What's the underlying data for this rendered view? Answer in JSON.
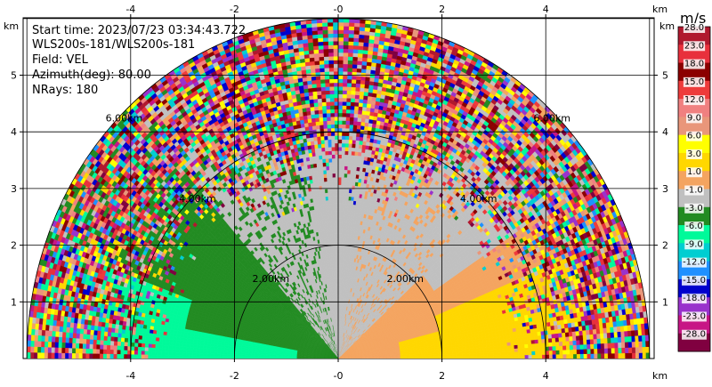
{
  "chart_data": {
    "type": "heatmap",
    "subtype": "radar-rhi-sector",
    "info_lines": [
      "Start time: 2023/07/23 03:34:43.722",
      "WLS200s-181/WLS200s-181",
      "Field: VEL",
      "Azimuth(deg): 80.00",
      "NRays: 180"
    ],
    "x_unit": "km",
    "y_unit": "km",
    "xlim": [
      -6,
      6
    ],
    "ylim": [
      0,
      6
    ],
    "x_ticks": [
      -4,
      -2,
      0,
      2,
      4
    ],
    "y_ticks": [
      1,
      2,
      3,
      4,
      5
    ],
    "x_tick_labels": [
      "-4",
      "-2",
      "-0",
      "2",
      "4"
    ],
    "y_tick_labels": [
      "1",
      "2",
      "3",
      "4",
      "5"
    ],
    "grid": true,
    "range_rings_km": [
      2,
      4,
      6
    ],
    "range_ring_labels": [
      "2.00km",
      "4.00km",
      "6.00km"
    ],
    "max_range_km": 6,
    "colorbar": {
      "unit": "m/s",
      "ticks": [
        "28.0",
        "23.0",
        "18.0",
        "15.0",
        "12.0",
        "9.0",
        "6.0",
        "3.0",
        "1.0",
        "-1.0",
        "-3.0",
        "-6.0",
        "-9.0",
        "-12.0",
        "-15.0",
        "-18.0",
        "-23.0",
        "-28.0"
      ],
      "colors": [
        "#b0182e",
        "#e8303c",
        "#8b0000",
        "#ee3b3b",
        "#f08080",
        "#e9967a",
        "#ffff00",
        "#ffd700",
        "#f4a460",
        "#c0c0c0",
        "#228b22",
        "#00fa9a",
        "#00ced1",
        "#1e90ff",
        "#0000cd",
        "#9932cc",
        "#c71585",
        "#800040"
      ]
    },
    "velocity_structure": [
      {
        "label": "-1.0 to 1.0",
        "color": "#c0c0c0",
        "region": "near-zero band near 0 km and along slanted line"
      },
      {
        "label": "1.0 to 3.0",
        "color": "#f4a460",
        "region": "right side, low elevation"
      },
      {
        "label": "3.0 to 6.0",
        "color": "#ffd700",
        "region": "right side, lowest elevation near 2-4 km"
      },
      {
        "label": "-3.0 to -1.0",
        "color": "#228b22",
        "region": "left side, mid elevation"
      },
      {
        "label": "-6.0 to -3.0",
        "color": "#00fa9a",
        "region": "left side, lowest elevation"
      }
    ]
  }
}
